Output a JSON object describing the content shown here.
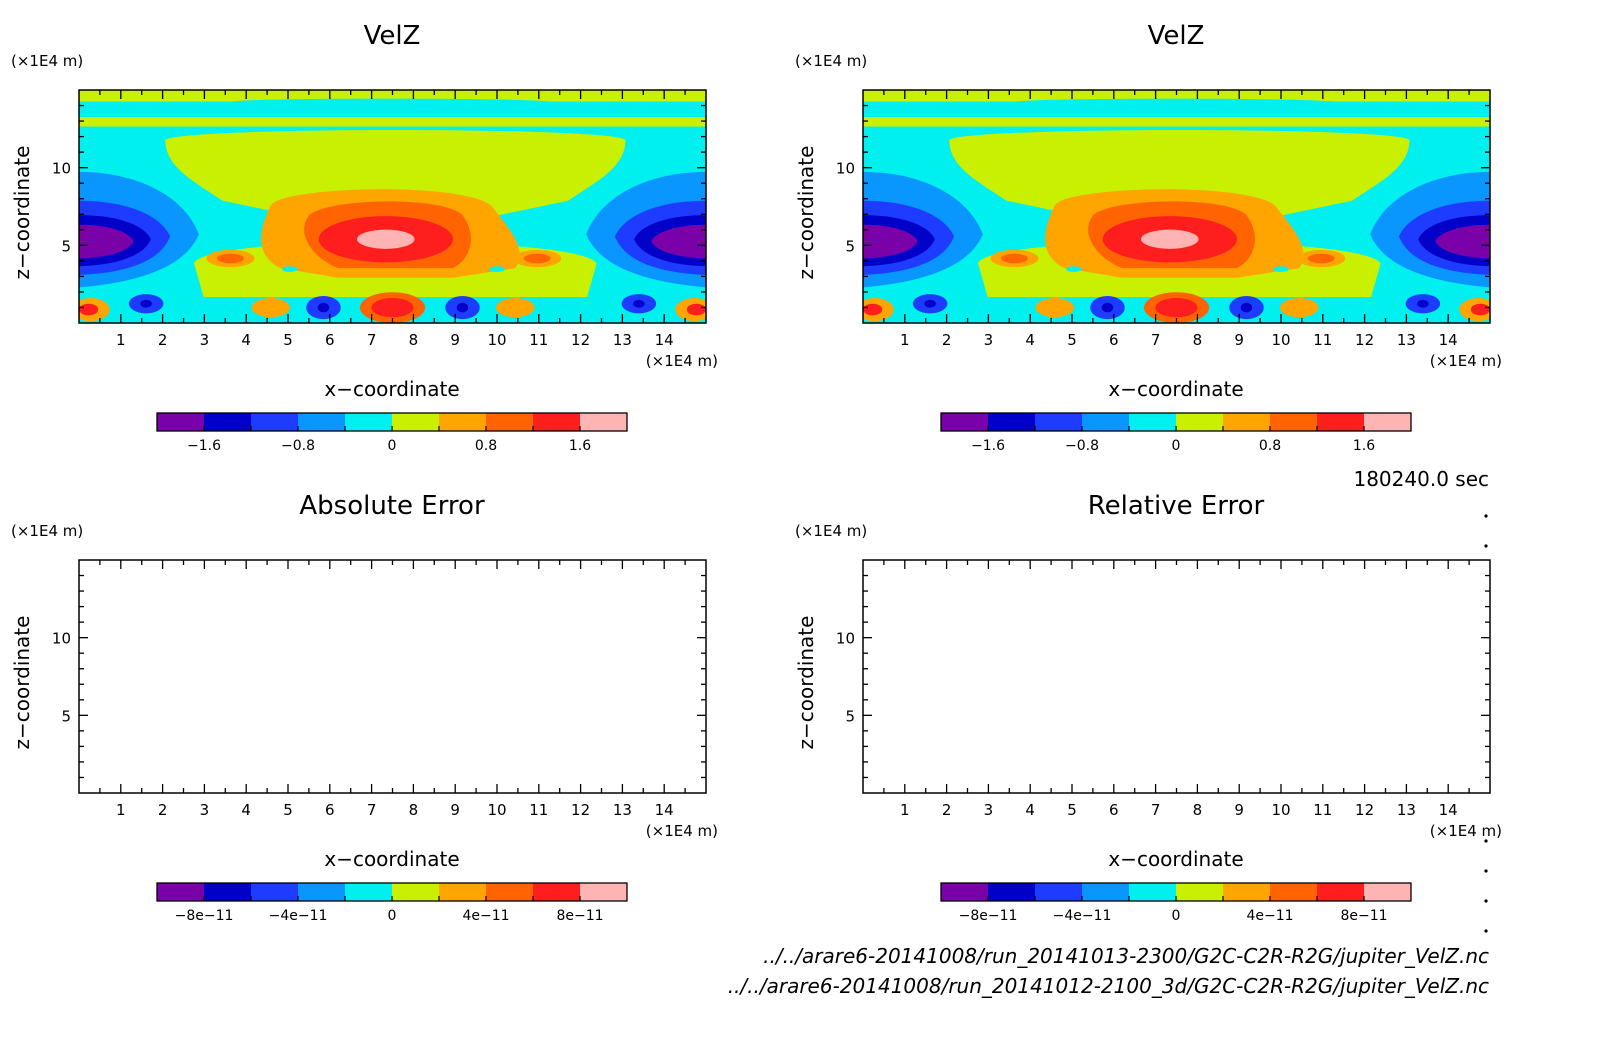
{
  "figure": {
    "time_label": "180240.0 sec",
    "footer_lines": [
      "../../arare6-20141008/run_20141013-2300/G2C-C2R-R2G/jupiter_VelZ.nc",
      "../../arare6-20141008/run_20141012-2100_3d/G2C-C2R-R2G/jupiter_VelZ.nc"
    ]
  },
  "panels": [
    {
      "title": "VelZ",
      "xlabel": "x−coordinate",
      "ylabel": "z−coordinate",
      "x_unit": "(×1E4 m)",
      "y_unit": "(×1E4 m)",
      "filled": true,
      "colorbar_ticks": [
        "−1.6",
        "−0.8",
        "0",
        "0.8",
        "1.6"
      ]
    },
    {
      "title": "VelZ",
      "xlabel": "x−coordinate",
      "ylabel": "z−coordinate",
      "x_unit": "(×1E4 m)",
      "y_unit": "(×1E4 m)",
      "filled": true,
      "colorbar_ticks": [
        "−1.6",
        "−0.8",
        "0",
        "0.8",
        "1.6"
      ]
    },
    {
      "title": "Absolute Error",
      "xlabel": "x−coordinate",
      "ylabel": "z−coordinate",
      "x_unit": "(×1E4 m)",
      "y_unit": "(×1E4 m)",
      "filled": false,
      "colorbar_ticks": [
        "−8e−11",
        "−4e−11",
        "0",
        "4e−11",
        "8e−11"
      ]
    },
    {
      "title": "Relative Error",
      "xlabel": "x−coordinate",
      "ylabel": "z−coordinate",
      "x_unit": "(×1E4 m)",
      "y_unit": "(×1E4 m)",
      "filled": false,
      "colorbar_ticks": [
        "−8e−11",
        "−4e−11",
        "0",
        "4e−11",
        "8e−11"
      ]
    }
  ],
  "chart_data": [
    {
      "type": "heatmap",
      "title": "VelZ",
      "xlabel": "x−coordinate",
      "ylabel": "z−coordinate",
      "xlim": [
        0,
        15
      ],
      "ylim": [
        0,
        15
      ],
      "xticks": [
        1,
        2,
        3,
        4,
        5,
        6,
        7,
        8,
        9,
        10,
        11,
        12,
        13,
        14
      ],
      "yticks": [
        5,
        10
      ],
      "colorbar": {
        "levels": [
          -2.0,
          -1.6,
          -1.2,
          -0.8,
          -0.4,
          0,
          0.4,
          0.8,
          1.2,
          1.6,
          2.0
        ],
        "colors": [
          "#7a00aa",
          "#0000c8",
          "#1e3cff",
          "#0a96ff",
          "#00f0f0",
          "#c8f000",
          "#ffa500",
          "#ff6400",
          "#ff1e1e",
          "#ffb4b4"
        ]
      },
      "features": [
        {
          "desc": "peak updraft",
          "x": 7.5,
          "z": 5,
          "value": 1.8
        },
        {
          "desc": "downdraft left",
          "x": 0.5,
          "z": 5,
          "value": -1.8
        },
        {
          "desc": "downdraft right",
          "x": 14.5,
          "z": 5,
          "value": -1.8
        }
      ]
    },
    {
      "type": "heatmap",
      "title": "VelZ",
      "xlabel": "x−coordinate",
      "ylabel": "z−coordinate",
      "xlim": [
        0,
        15
      ],
      "ylim": [
        0,
        15
      ],
      "xticks": [
        1,
        2,
        3,
        4,
        5,
        6,
        7,
        8,
        9,
        10,
        11,
        12,
        13,
        14
      ],
      "yticks": [
        5,
        10
      ]
    },
    {
      "type": "heatmap",
      "title": "Absolute Error",
      "xlabel": "x−coordinate",
      "ylabel": "z−coordinate",
      "xlim": [
        0,
        15
      ],
      "ylim": [
        0,
        15
      ],
      "xticks": [
        1,
        2,
        3,
        4,
        5,
        6,
        7,
        8,
        9,
        10,
        11,
        12,
        13,
        14
      ],
      "yticks": [
        5,
        10
      ],
      "values": "all zero (blank field)",
      "colorbar": {
        "levels": [
          -1e-10,
          -8e-11,
          -6e-11,
          -4e-11,
          -2e-11,
          0,
          2e-11,
          4e-11,
          6e-11,
          8e-11,
          1e-10
        ]
      }
    },
    {
      "type": "heatmap",
      "title": "Relative Error",
      "xlabel": "x−coordinate",
      "ylabel": "z−coordinate",
      "xlim": [
        0,
        15
      ],
      "ylim": [
        0,
        15
      ],
      "xticks": [
        1,
        2,
        3,
        4,
        5,
        6,
        7,
        8,
        9,
        10,
        11,
        12,
        13,
        14
      ],
      "yticks": [
        5,
        10
      ],
      "values": "all zero (blank field)",
      "colorbar": {
        "levels": [
          -1e-10,
          -8e-11,
          -6e-11,
          -4e-11,
          -2e-11,
          0,
          2e-11,
          4e-11,
          6e-11,
          8e-11,
          1e-10
        ]
      }
    }
  ],
  "colors": [
    "#7a00aa",
    "#0000c8",
    "#1e3cff",
    "#0a96ff",
    "#00f0f0",
    "#c8f000",
    "#ffa500",
    "#ff6400",
    "#ff1e1e",
    "#ffb4b4"
  ]
}
